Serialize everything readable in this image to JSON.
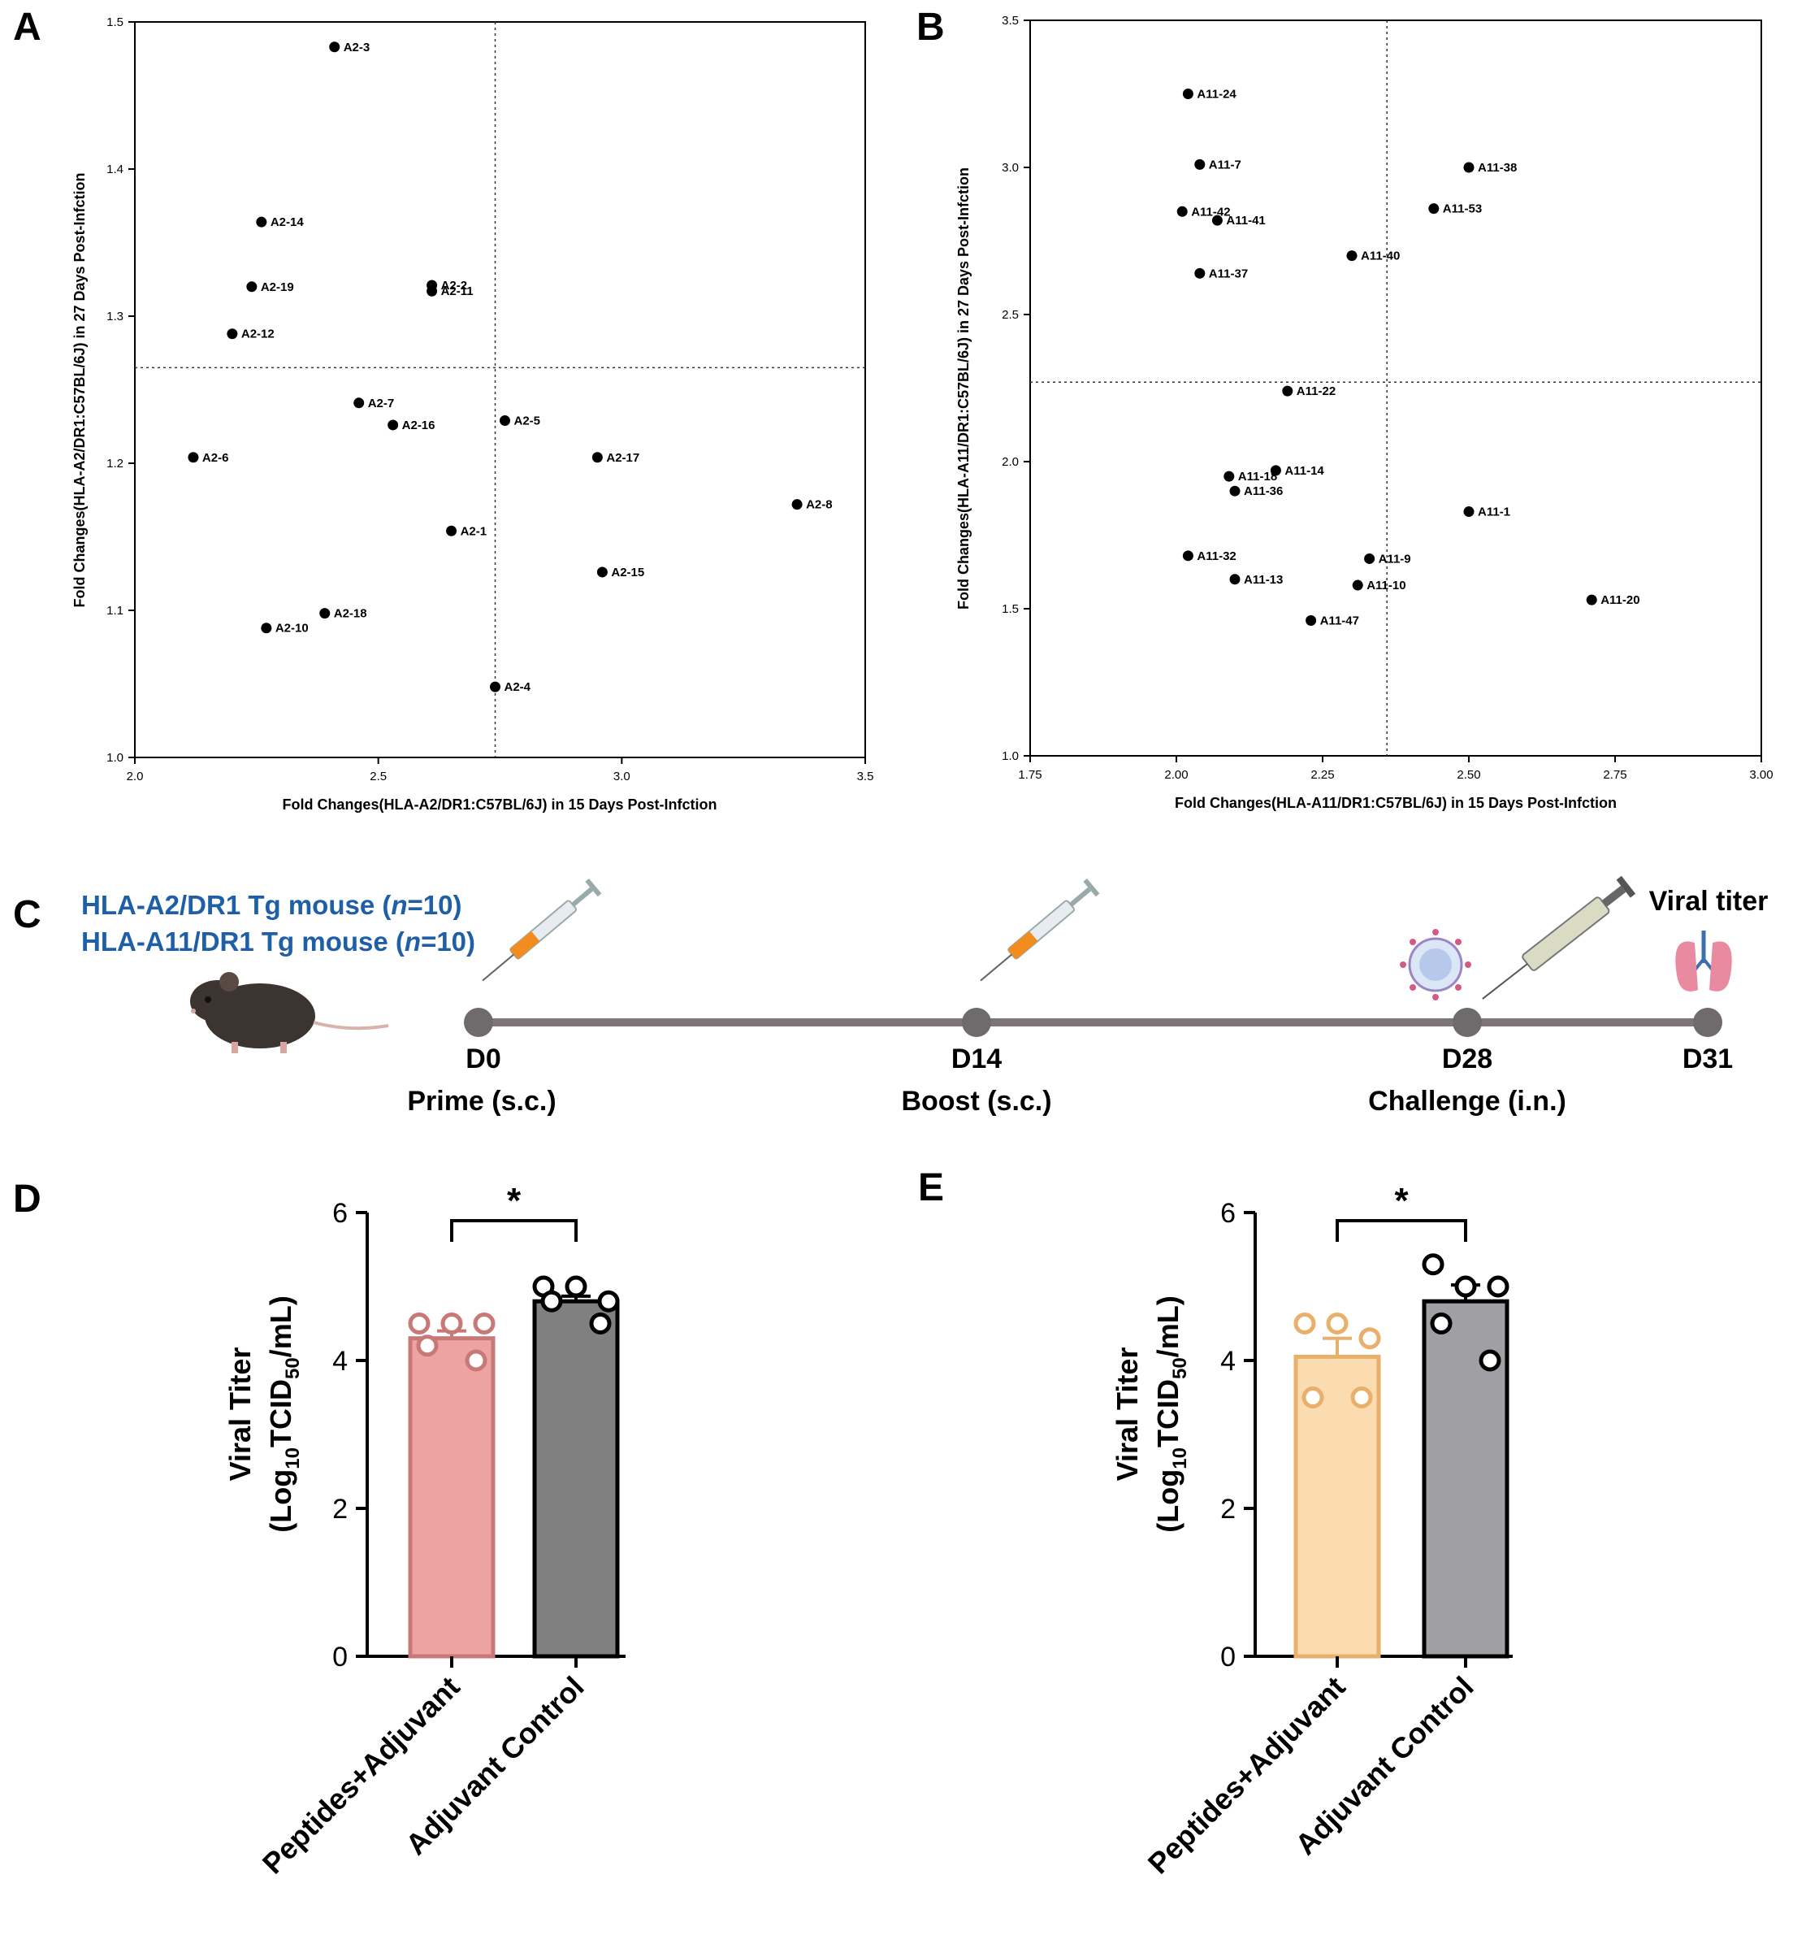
{
  "panels": {
    "A": "A",
    "B": "B",
    "C": "C",
    "D": "D",
    "E": "E"
  },
  "chart_data": [
    {
      "id": "A",
      "type": "scatter",
      "xlabel": "Fold Changes(HLA-A2/DR1:C57BL/6J) in 15 Days Post-Infction",
      "ylabel": "Fold Changes(HLA-A2/DR1:C57BL/6J) in 27 Days Post-Infction",
      "xlim": [
        2.0,
        3.5
      ],
      "ylim": [
        1.0,
        1.5
      ],
      "xticks": [
        "2.0",
        "2.5",
        "3.0",
        "3.5"
      ],
      "xtick_values": [
        2.0,
        2.5,
        3.0,
        3.5
      ],
      "yticks": [
        "1.0",
        "1.1",
        "1.2",
        "1.3",
        "1.4",
        "1.5"
      ],
      "ytick_values": [
        1.0,
        1.1,
        1.2,
        1.3,
        1.4,
        1.5
      ],
      "threshold_x": 2.74,
      "threshold_y": 1.265,
      "points": [
        {
          "label": "A2-3",
          "x": 2.41,
          "y": 1.483
        },
        {
          "label": "A2-14",
          "x": 2.26,
          "y": 1.364
        },
        {
          "label": "A2-19",
          "x": 2.24,
          "y": 1.32
        },
        {
          "label": "A2-2",
          "x": 2.61,
          "y": 1.321
        },
        {
          "label": "A2-11",
          "x": 2.61,
          "y": 1.317
        },
        {
          "label": "A2-12",
          "x": 2.2,
          "y": 1.288
        },
        {
          "label": "A2-7",
          "x": 2.46,
          "y": 1.241
        },
        {
          "label": "A2-16",
          "x": 2.53,
          "y": 1.226
        },
        {
          "label": "A2-5",
          "x": 2.76,
          "y": 1.229
        },
        {
          "label": "A2-6",
          "x": 2.12,
          "y": 1.204
        },
        {
          "label": "A2-17",
          "x": 2.95,
          "y": 1.204
        },
        {
          "label": "A2-8",
          "x": 3.36,
          "y": 1.172
        },
        {
          "label": "A2-1",
          "x": 2.65,
          "y": 1.154
        },
        {
          "label": "A2-15",
          "x": 2.96,
          "y": 1.126
        },
        {
          "label": "A2-18",
          "x": 2.39,
          "y": 1.098
        },
        {
          "label": "A2-10",
          "x": 2.27,
          "y": 1.088
        },
        {
          "label": "A2-4",
          "x": 2.74,
          "y": 1.048
        }
      ]
    },
    {
      "id": "B",
      "type": "scatter",
      "xlabel": "Fold Changes(HLA-A11/DR1:C57BL/6J) in 15 Days Post-Infction",
      "ylabel": "Fold Changes(HLA-A11/DR1:C57BL/6J) in 27 Days Post-Infction",
      "xlim": [
        1.75,
        3.0
      ],
      "ylim": [
        1.0,
        3.5
      ],
      "xticks": [
        "1.75",
        "2.00",
        "2.25",
        "2.50",
        "2.75",
        "3.00"
      ],
      "xtick_values": [
        1.75,
        2.0,
        2.25,
        2.5,
        2.75,
        3.0
      ],
      "yticks": [
        "1.0",
        "1.5",
        "2.0",
        "2.5",
        "3.0",
        "3.5"
      ],
      "ytick_values": [
        1.0,
        1.5,
        2.0,
        2.5,
        3.0,
        3.5
      ],
      "threshold_x": 2.36,
      "threshold_y": 2.27,
      "points": [
        {
          "label": "A11-24",
          "x": 2.02,
          "y": 3.25
        },
        {
          "label": "A11-7",
          "x": 2.04,
          "y": 3.01
        },
        {
          "label": "A11-38",
          "x": 2.5,
          "y": 3.0
        },
        {
          "label": "A11-42",
          "x": 2.01,
          "y": 2.85
        },
        {
          "label": "A11-41",
          "x": 2.07,
          "y": 2.82
        },
        {
          "label": "A11-53",
          "x": 2.44,
          "y": 2.86
        },
        {
          "label": "A11-40",
          "x": 2.3,
          "y": 2.7
        },
        {
          "label": "A11-37",
          "x": 2.04,
          "y": 2.64
        },
        {
          "label": "A11-22",
          "x": 2.19,
          "y": 2.24
        },
        {
          "label": "A11-14",
          "x": 2.17,
          "y": 1.97
        },
        {
          "label": "A11-18",
          "x": 2.09,
          "y": 1.95
        },
        {
          "label": "A11-36",
          "x": 2.1,
          "y": 1.9
        },
        {
          "label": "A11-1",
          "x": 2.5,
          "y": 1.83
        },
        {
          "label": "A11-32",
          "x": 2.02,
          "y": 1.68
        },
        {
          "label": "A11-9",
          "x": 2.33,
          "y": 1.67
        },
        {
          "label": "A11-13",
          "x": 2.1,
          "y": 1.6
        },
        {
          "label": "A11-10",
          "x": 2.31,
          "y": 1.58
        },
        {
          "label": "A11-20",
          "x": 2.71,
          "y": 1.53
        },
        {
          "label": "A11-47",
          "x": 2.23,
          "y": 1.46
        }
      ]
    },
    {
      "id": "D",
      "type": "bar",
      "ylabel_line1": "Viral Titer",
      "ylabel_line2_prefix": "(Log",
      "ylabel_sub1": "10",
      "ylabel_mid": "TCID",
      "ylabel_sub2": "50",
      "ylabel_suffix": "/mL)",
      "ylim": [
        0,
        6
      ],
      "yticks": [
        "0",
        "2",
        "4",
        "6"
      ],
      "ytick_values": [
        0,
        2,
        4,
        6
      ],
      "significance": "*",
      "categories": [
        "Peptides+Adjuvant",
        "Adjuvant Control"
      ],
      "means": [
        4.3,
        4.8
      ],
      "sem": [
        0.1,
        0.07
      ],
      "fill_colors": [
        "#eea3a3",
        "#808080"
      ],
      "stroke_colors": [
        "#c97878",
        "#000000"
      ],
      "points": [
        [
          4.5,
          4.5,
          4.5,
          4.2,
          4.0
        ],
        [
          5.0,
          5.0,
          4.8,
          4.8,
          4.5
        ]
      ]
    },
    {
      "id": "E",
      "type": "bar",
      "ylabel_line1": "Viral Titer",
      "ylabel_line2_prefix": "(Log",
      "ylabel_sub1": "10",
      "ylabel_mid": "TCID",
      "ylabel_sub2": "50",
      "ylabel_suffix": "/mL)",
      "ylim": [
        0,
        6
      ],
      "yticks": [
        "0",
        "2",
        "4",
        "6"
      ],
      "ytick_values": [
        0,
        2,
        4,
        6
      ],
      "significance": "*",
      "categories": [
        "Peptides+Adjuvant",
        "Adjuvant Control"
      ],
      "means": [
        4.05,
        4.8
      ],
      "sem": [
        0.25,
        0.22
      ],
      "fill_colors": [
        "#fbdcb0",
        "#a0a0a4"
      ],
      "stroke_colors": [
        "#e8b06a",
        "#000000"
      ],
      "points": [
        [
          4.5,
          4.5,
          4.3,
          3.5,
          3.5
        ],
        [
          5.3,
          5.0,
          5.0,
          4.5,
          4.0
        ]
      ]
    }
  ],
  "timeline": {
    "group1_prefix": "HLA-A2/DR1 Tg mouse (",
    "group1_n": "n",
    "group1_suffix": "=10)",
    "group2_prefix": "HLA-A11/DR1 Tg mouse (",
    "group2_n": "n",
    "group2_suffix": "=10)",
    "viral_titer_title": "Viral titer",
    "milestones": [
      {
        "day": "D0",
        "step": "Prime (s.c.)"
      },
      {
        "day": "D14",
        "step": "Boost (s.c.)"
      },
      {
        "day": "D28",
        "step": "Challenge (i.n.)"
      },
      {
        "day": "D31",
        "step": ""
      }
    ],
    "colors": {
      "group_text": "#1f5fa8",
      "line": "#7d7577",
      "node": "#6f6a6c"
    }
  }
}
